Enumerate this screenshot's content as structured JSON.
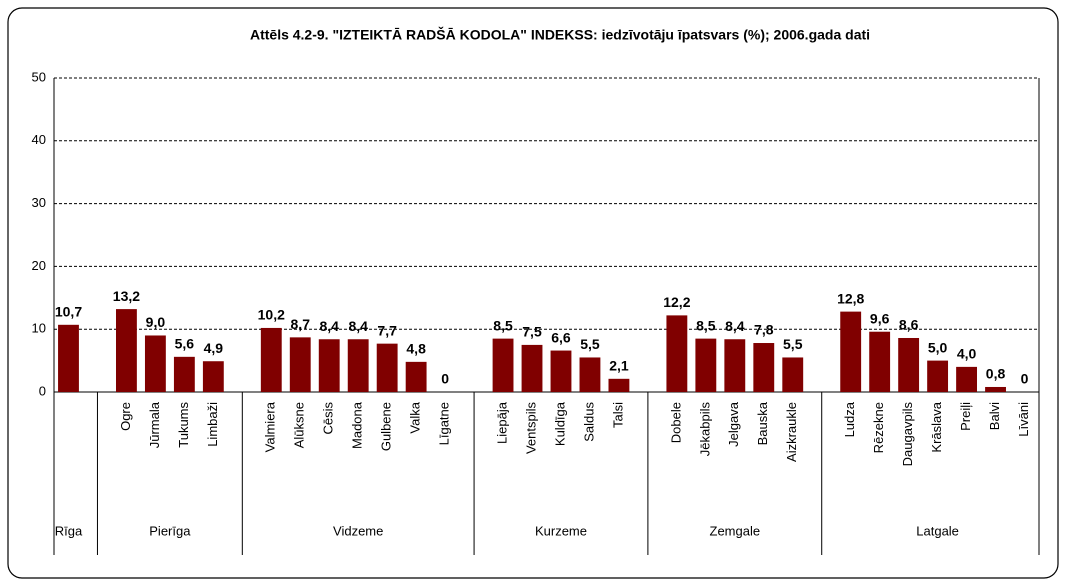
{
  "chart_data": {
    "type": "bar",
    "title": "Attēls 4.2-9. \"IZTEIKTĀ RADŠĀ KODOLA\" INDEKSS: iedzīvotāju īpatsvars (%); 2006.gada dati",
    "color": "#800000",
    "ylim": [
      0,
      50
    ],
    "yticks": [
      0,
      10,
      20,
      30,
      40,
      50
    ],
    "grid": true,
    "groups": [
      {
        "label": "Rīga",
        "categories": [
          null
        ],
        "values": [
          10.7
        ],
        "value_labels": [
          "10,7"
        ]
      },
      {
        "label": "Pierīga",
        "categories": [
          "Ogre",
          "Jūrmala",
          "Tukums",
          "Limbaži"
        ],
        "values": [
          13.2,
          9.0,
          5.6,
          4.9
        ],
        "value_labels": [
          "13,2",
          "9,0",
          "5,6",
          "4,9"
        ]
      },
      {
        "label": "Vidzeme",
        "categories": [
          "Valmiera",
          "Alūksne",
          "Cēsis",
          "Madona",
          "Gulbene",
          "Valka",
          "Līgatne"
        ],
        "values": [
          10.2,
          8.7,
          8.4,
          8.4,
          7.7,
          4.8,
          0
        ],
        "value_labels": [
          "10,2",
          "8,7",
          "8,4",
          "8,4",
          "7,7",
          "4,8",
          "0"
        ]
      },
      {
        "label": "Kurzeme",
        "categories": [
          "Liepāja",
          "Ventspils",
          "Kuldīga",
          "Saldus",
          "Talsi"
        ],
        "values": [
          8.5,
          7.5,
          6.6,
          5.5,
          2.1
        ],
        "value_labels": [
          "8,5",
          "7,5",
          "6,6",
          "5,5",
          "2,1"
        ]
      },
      {
        "label": "Zemgale",
        "categories": [
          "Dobele",
          "Jēkabpils",
          "Jelgava",
          "Bauska",
          "Aizkraukle"
        ],
        "values": [
          12.2,
          8.5,
          8.4,
          7.8,
          5.5
        ],
        "value_labels": [
          "12,2",
          "8,5",
          "8,4",
          "7,8",
          "5,5"
        ]
      },
      {
        "label": "Latgale",
        "categories": [
          "Ludza",
          "Rēzekne",
          "Daugavpils",
          "Krāslava",
          "Preiļi",
          "Balvi",
          "Līvāni"
        ],
        "values": [
          12.8,
          9.6,
          8.6,
          5.0,
          4.0,
          0.8,
          0
        ],
        "value_labels": [
          "12,8",
          "9,6",
          "8,6",
          "5,0",
          "4,0",
          "0,8",
          "0"
        ]
      }
    ]
  }
}
